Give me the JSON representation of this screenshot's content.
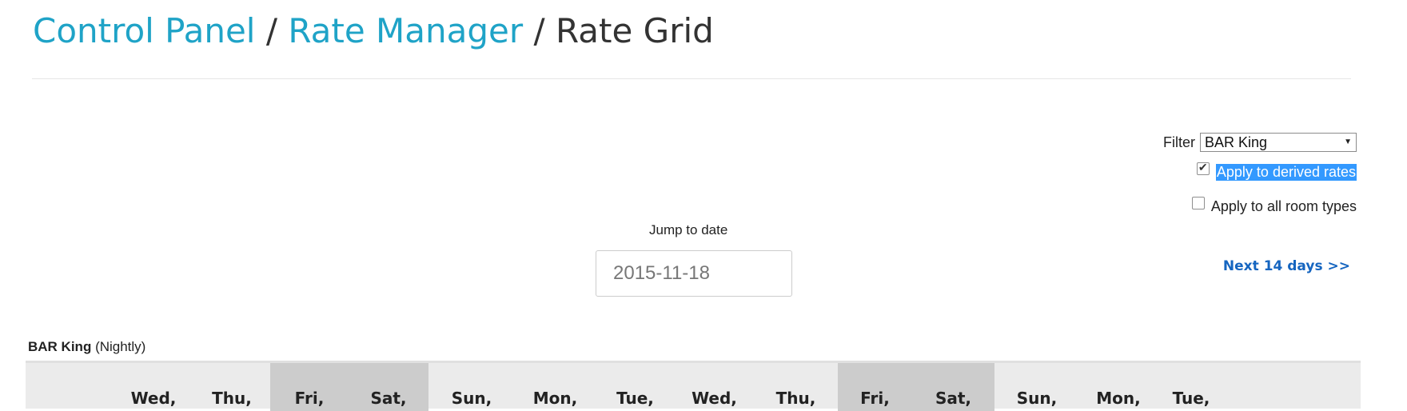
{
  "breadcrumb": {
    "items": [
      "Control Panel",
      "Rate Manager"
    ],
    "separator": "/",
    "current": "Rate Grid"
  },
  "filter": {
    "label": "Filter",
    "selected": "BAR King"
  },
  "options": {
    "apply_derived": {
      "label": "Apply to derived rates",
      "checked": true
    },
    "apply_all_rooms": {
      "label": "Apply to all room types",
      "checked": false
    }
  },
  "jump": {
    "label": "Jump to date",
    "value": "2015-11-18"
  },
  "next_link": "Next 14 days >>",
  "grid": {
    "room_name": "BAR King",
    "rate_type": "(Nightly)",
    "days": [
      {
        "label": "Wed,",
        "weekend": false
      },
      {
        "label": "Thu,",
        "weekend": false
      },
      {
        "label": "Fri,",
        "weekend": true
      },
      {
        "label": "Sat,",
        "weekend": true
      },
      {
        "label": "Sun,",
        "weekend": false
      },
      {
        "label": "Mon,",
        "weekend": false
      },
      {
        "label": "Tue,",
        "weekend": false
      },
      {
        "label": "Wed,",
        "weekend": false
      },
      {
        "label": "Thu,",
        "weekend": false
      },
      {
        "label": "Fri,",
        "weekend": true
      },
      {
        "label": "Sat,",
        "weekend": true
      },
      {
        "label": "Sun,",
        "weekend": false
      },
      {
        "label": "Mon,",
        "weekend": false
      },
      {
        "label": "Tue,",
        "weekend": false
      }
    ]
  }
}
